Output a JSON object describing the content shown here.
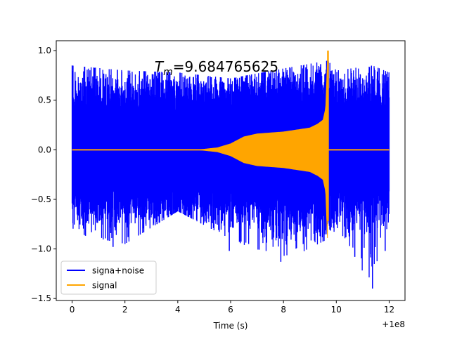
{
  "chart_data": {
    "type": "line",
    "title_main": "T",
    "title_sub": "m",
    "title_value": "=9.684765625",
    "xlabel": "Time (s)",
    "x_offset_label": "+1e8",
    "ylabel": "",
    "xlim": [
      -0.6,
      12.6
    ],
    "ylim": [
      -1.52,
      1.1
    ],
    "xticks": [
      0,
      2,
      4,
      6,
      8,
      10,
      12
    ],
    "xtick_labels": [
      "0",
      "2",
      "4",
      "6",
      "8",
      "10",
      "12"
    ],
    "yticks": [
      -1.5,
      -1.0,
      -0.5,
      0.0,
      0.5,
      1.0
    ],
    "ytick_labels": [
      "−1.5",
      "−1.0",
      "−0.5",
      "0.0",
      "0.5",
      "1.0"
    ],
    "grid": false,
    "legend_position": "lower-left",
    "series": [
      {
        "name": "signa+noise",
        "color": "#0000ff",
        "description": "broadband noise envelope plus chirp",
        "envelope_x": [
          0,
          2,
          4,
          6,
          8,
          9.68,
          10,
          11.37,
          12
        ],
        "envelope_upper": [
          0.85,
          0.8,
          0.78,
          0.72,
          0.82,
          0.9,
          0.8,
          0.85,
          0.78
        ],
        "envelope_lower": [
          -0.84,
          -0.95,
          -0.62,
          -0.9,
          -1.13,
          -0.9,
          -0.8,
          -1.4,
          -0.7
        ],
        "peaks": [
          {
            "x": 1.55,
            "y": -0.98
          },
          {
            "x": 5.95,
            "y": -1.02
          },
          {
            "x": 7.9,
            "y": -1.13
          },
          {
            "x": 10.7,
            "y": -1.08
          },
          {
            "x": 11.37,
            "y": -1.4
          },
          {
            "x": 11.85,
            "y": -1.02
          }
        ]
      },
      {
        "name": "signal",
        "color": "#ffa500",
        "description": "inspiral chirp ending at merger",
        "x": [
          4.8,
          5.5,
          6.0,
          6.5,
          7.0,
          7.5,
          8.0,
          8.5,
          9.0,
          9.3,
          9.5,
          9.6,
          9.68
        ],
        "amplitude": [
          0.0,
          0.02,
          0.06,
          0.13,
          0.16,
          0.17,
          0.18,
          0.2,
          0.22,
          0.26,
          0.3,
          0.42,
          1.0
        ],
        "merger_time": 9.684765625,
        "merger_peak": 1.0,
        "merger_trough": -0.72
      }
    ]
  }
}
